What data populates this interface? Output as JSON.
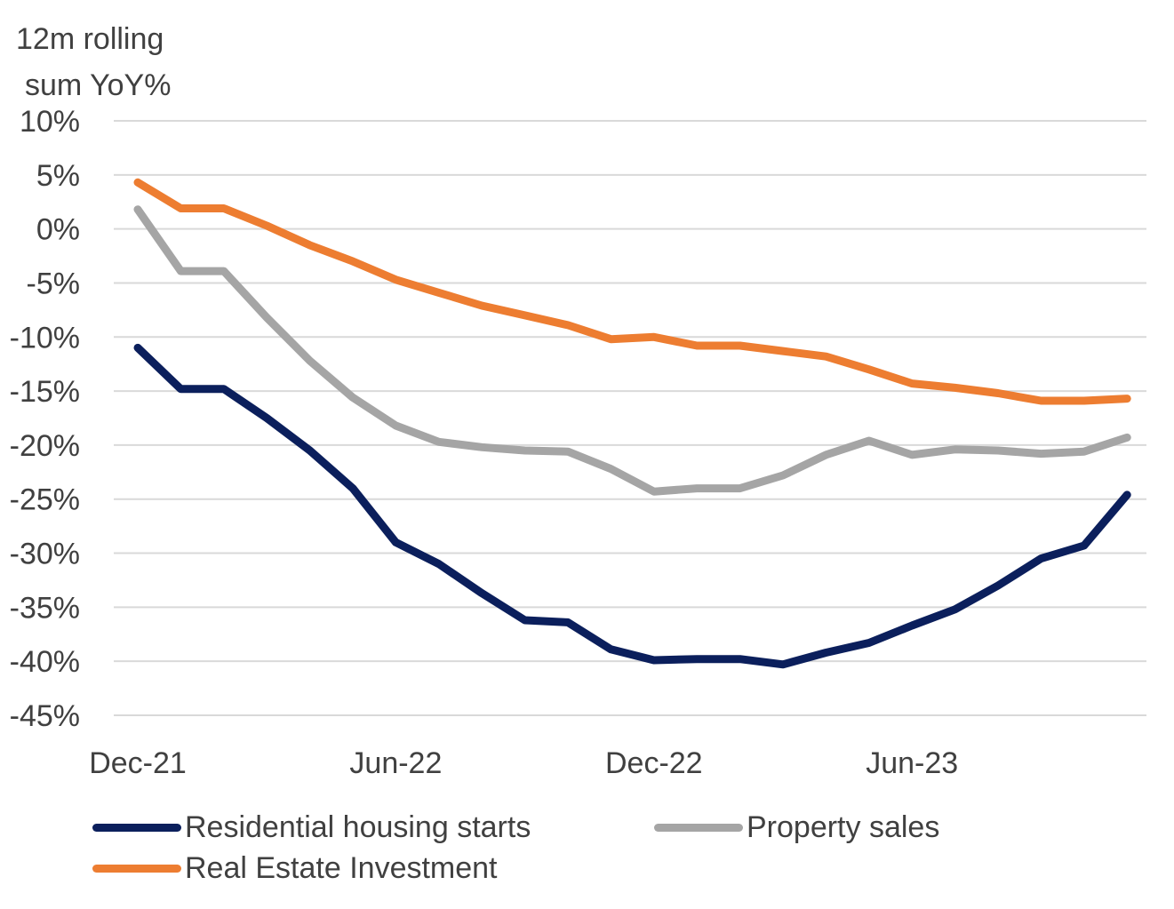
{
  "chart_data": {
    "type": "line",
    "ylabel": "12m rolling sum YoY%",
    "ylabel_lines": [
      "12m rolling",
      "sum YoY%"
    ],
    "ylim": [
      -45,
      10
    ],
    "yticks": [
      10,
      5,
      0,
      -5,
      -10,
      -15,
      -20,
      -25,
      -30,
      -35,
      -40,
      -45
    ],
    "ytick_labels": [
      "10%",
      "5%",
      "0%",
      "-5%",
      "-10%",
      "-15%",
      "-20%",
      "-25%",
      "-30%",
      "-35%",
      "-40%",
      "-45%"
    ],
    "grid": true,
    "x": [
      "Dec-21",
      "Jan-22",
      "Feb-22",
      "Mar-22",
      "Apr-22",
      "May-22",
      "Jun-22",
      "Jul-22",
      "Aug-22",
      "Sep-22",
      "Oct-22",
      "Nov-22",
      "Dec-22",
      "Jan-23",
      "Feb-23",
      "Mar-23",
      "Apr-23",
      "May-23",
      "Jun-23",
      "Jul-23",
      "Aug-23",
      "Sep-23",
      "Oct-23",
      "Nov-23"
    ],
    "xtick_labels": [
      "Dec-21",
      "Jun-22",
      "Dec-22",
      "Jun-23"
    ],
    "xtick_indices": [
      0,
      6,
      12,
      18
    ],
    "legend_position": "bottom",
    "series": [
      {
        "name": "Residential housing starts",
        "color": "#0b1f5c",
        "values": [
          -11.0,
          -14.8,
          -14.8,
          -17.5,
          -20.5,
          -24.0,
          -29.0,
          -31.0,
          -33.7,
          -36.2,
          -36.4,
          -38.9,
          -39.9,
          -39.8,
          -39.8,
          -40.3,
          -39.2,
          -38.3,
          -36.7,
          -35.2,
          -33.0,
          -30.5,
          -29.3,
          -24.6
        ]
      },
      {
        "name": "Property sales",
        "color": "#a5a5a5",
        "values": [
          1.8,
          -3.9,
          -3.9,
          -8.2,
          -12.2,
          -15.6,
          -18.2,
          -19.7,
          -20.2,
          -20.5,
          -20.6,
          -22.2,
          -24.3,
          -24.0,
          -24.0,
          -22.8,
          -20.9,
          -19.6,
          -20.9,
          -20.4,
          -20.5,
          -20.8,
          -20.6,
          -19.3
        ]
      },
      {
        "name": "Real Estate Investment",
        "color": "#ed7d31",
        "values": [
          4.3,
          1.9,
          1.9,
          0.3,
          -1.5,
          -3.0,
          -4.7,
          -5.9,
          -7.1,
          -8.0,
          -8.9,
          -10.2,
          -10.0,
          -10.8,
          -10.8,
          -11.3,
          -11.8,
          -13.0,
          -14.3,
          -14.7,
          -15.2,
          -15.9,
          -15.9,
          -15.7
        ]
      }
    ]
  }
}
